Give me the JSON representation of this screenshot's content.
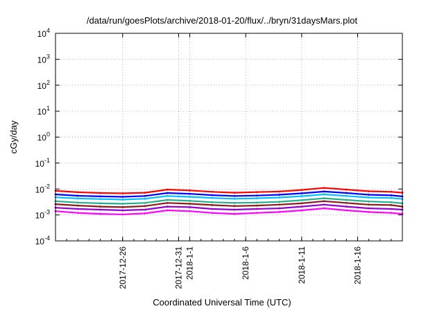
{
  "chart_data": {
    "type": "line",
    "title": "/data/run/goesPlots/archive/2018-01-20/flux/../bryn/31daysMars.plot",
    "xlabel": "Coordinated Universal Time (UTC)",
    "ylabel": "cGy/day",
    "yscale": "log",
    "ylim": [
      0.0001,
      10000
    ],
    "xlim": [
      "2017-12-20",
      "2018-01-20"
    ],
    "grid": true,
    "y_ticks": [
      {
        "base": "10",
        "exp": "-4"
      },
      {
        "base": "10",
        "exp": "-3"
      },
      {
        "base": "10",
        "exp": "-2"
      },
      {
        "base": "10",
        "exp": "-1"
      },
      {
        "base": "10",
        "exp": "0"
      },
      {
        "base": "10",
        "exp": "1"
      },
      {
        "base": "10",
        "exp": "2"
      },
      {
        "base": "10",
        "exp": "3"
      },
      {
        "base": "10",
        "exp": "4"
      }
    ],
    "x_ticks": [
      {
        "label": "2017-12-26",
        "date": "2017-12-26"
      },
      {
        "label": "2017-12-31",
        "date": "2017-12-31"
      },
      {
        "label": "2018-1-1",
        "date": "2018-01-01"
      },
      {
        "label": "2018-1-6",
        "date": "2018-01-06"
      },
      {
        "label": "2018-1-11",
        "date": "2018-01-11"
      },
      {
        "label": "2018-1-16",
        "date": "2018-01-16"
      }
    ],
    "series": [
      {
        "color": "#ff0000",
        "x": [
          "2017-12-20",
          "2017-12-22",
          "2017-12-24",
          "2017-12-26",
          "2017-12-28",
          "2017-12-30",
          "2018-01-01",
          "2018-01-03",
          "2018-01-05",
          "2018-01-07",
          "2018-01-09",
          "2018-01-11",
          "2018-01-13",
          "2018-01-15",
          "2018-01-17",
          "2018-01-19",
          "2018-01-20"
        ],
        "values": [
          0.0085,
          0.0075,
          0.007,
          0.0068,
          0.0072,
          0.0095,
          0.0088,
          0.0078,
          0.0072,
          0.0076,
          0.008,
          0.0092,
          0.011,
          0.0095,
          0.0082,
          0.0078,
          0.0072
        ]
      },
      {
        "color": "#0000ff",
        "x": [
          "2017-12-20",
          "2017-12-22",
          "2017-12-24",
          "2017-12-26",
          "2017-12-28",
          "2017-12-30",
          "2018-01-01",
          "2018-01-03",
          "2018-01-05",
          "2018-01-07",
          "2018-01-09",
          "2018-01-11",
          "2018-01-13",
          "2018-01-15",
          "2018-01-17",
          "2018-01-19",
          "2018-01-20"
        ],
        "values": [
          0.0062,
          0.0055,
          0.0052,
          0.005,
          0.0054,
          0.007,
          0.0065,
          0.0058,
          0.0054,
          0.0056,
          0.006,
          0.0068,
          0.008,
          0.007,
          0.006,
          0.0057,
          0.0052
        ]
      },
      {
        "color": "#00bfff",
        "x": [
          "2017-12-20",
          "2017-12-22",
          "2017-12-24",
          "2017-12-26",
          "2017-12-28",
          "2017-12-30",
          "2018-01-01",
          "2018-01-03",
          "2018-01-05",
          "2018-01-07",
          "2018-01-09",
          "2018-01-11",
          "2018-01-13",
          "2018-01-15",
          "2018-01-17",
          "2018-01-19",
          "2018-01-20"
        ],
        "values": [
          0.0048,
          0.0043,
          0.0041,
          0.0039,
          0.0042,
          0.0054,
          0.005,
          0.0045,
          0.0042,
          0.0044,
          0.0047,
          0.0053,
          0.0062,
          0.0054,
          0.0047,
          0.0045,
          0.0041
        ]
      },
      {
        "color": "#20b28a",
        "x": [
          "2017-12-20",
          "2017-12-22",
          "2017-12-24",
          "2017-12-26",
          "2017-12-28",
          "2017-12-30",
          "2018-01-01",
          "2018-01-03",
          "2018-01-05",
          "2018-01-07",
          "2018-01-09",
          "2018-01-11",
          "2018-01-13",
          "2018-01-15",
          "2018-01-17",
          "2018-01-19",
          "2018-01-20"
        ],
        "values": [
          0.0034,
          0.003,
          0.0028,
          0.0027,
          0.0029,
          0.0038,
          0.0035,
          0.0031,
          0.0029,
          0.003,
          0.0032,
          0.0037,
          0.0044,
          0.0038,
          0.0033,
          0.0031,
          0.0028
        ]
      },
      {
        "color": "#8b1a1a",
        "x": [
          "2017-12-20",
          "2017-12-22",
          "2017-12-24",
          "2017-12-26",
          "2017-12-28",
          "2017-12-30",
          "2018-01-01",
          "2018-01-03",
          "2018-01-05",
          "2018-01-07",
          "2018-01-09",
          "2018-01-11",
          "2018-01-13",
          "2018-01-15",
          "2018-01-17",
          "2018-01-19",
          "2018-01-20"
        ],
        "values": [
          0.0026,
          0.0023,
          0.0021,
          0.002,
          0.0022,
          0.0029,
          0.0027,
          0.0024,
          0.0022,
          0.0023,
          0.0025,
          0.0028,
          0.0034,
          0.0029,
          0.0025,
          0.0024,
          0.0021
        ]
      },
      {
        "color": "#9400d3",
        "x": [
          "2017-12-20",
          "2017-12-22",
          "2017-12-24",
          "2017-12-26",
          "2017-12-28",
          "2017-12-30",
          "2018-01-01",
          "2018-01-03",
          "2018-01-05",
          "2018-01-07",
          "2018-01-09",
          "2018-01-11",
          "2018-01-13",
          "2018-01-15",
          "2018-01-17",
          "2018-01-19",
          "2018-01-20"
        ],
        "values": [
          0.0019,
          0.0017,
          0.0016,
          0.0015,
          0.0016,
          0.0021,
          0.002,
          0.0017,
          0.0016,
          0.0017,
          0.0018,
          0.0021,
          0.0025,
          0.0021,
          0.0018,
          0.0017,
          0.0016
        ]
      },
      {
        "color": "#ff00ff",
        "x": [
          "2017-12-20",
          "2017-12-22",
          "2017-12-24",
          "2017-12-26",
          "2017-12-28",
          "2017-12-30",
          "2018-01-01",
          "2018-01-03",
          "2018-01-05",
          "2018-01-07",
          "2018-01-09",
          "2018-01-11",
          "2018-01-13",
          "2018-01-15",
          "2018-01-17",
          "2018-01-19",
          "2018-01-20"
        ],
        "values": [
          0.0014,
          0.0012,
          0.0011,
          0.00105,
          0.00115,
          0.0015,
          0.0014,
          0.0012,
          0.0011,
          0.0012,
          0.0013,
          0.0015,
          0.0018,
          0.0015,
          0.0013,
          0.0012,
          0.0011
        ]
      }
    ]
  }
}
